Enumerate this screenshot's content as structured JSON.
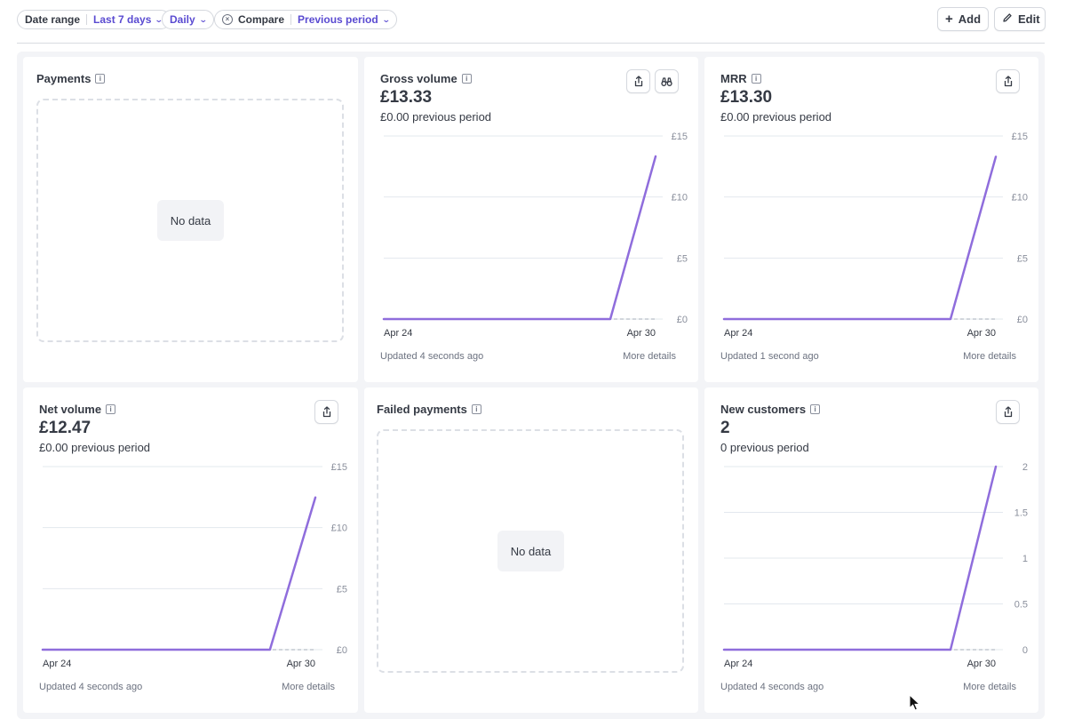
{
  "toolbar": {
    "date_range_label": "Date range",
    "date_range_value": "Last 7 days",
    "interval_value": "Daily",
    "compare_label": "Compare",
    "compare_value": "Previous period",
    "add_label": "Add",
    "edit_label": "Edit"
  },
  "colors": {
    "accent": "#5a4bd1",
    "series_line": "#8f6ddc",
    "grid_line": "#e3e8ee",
    "muted_text": "#6c7280"
  },
  "cards": {
    "payments": {
      "title": "Payments",
      "empty_text": "No data"
    },
    "failed_payments": {
      "title": "Failed payments",
      "empty_text": "No data"
    },
    "gross_volume": {
      "title": "Gross volume",
      "value": "£13.33",
      "previous": "£0.00 previous period",
      "updated": "Updated 4 seconds ago",
      "more": "More details"
    },
    "mrr": {
      "title": "MRR",
      "value": "£13.30",
      "previous": "£0.00 previous period",
      "updated": "Updated 1 second ago",
      "more": "More details"
    },
    "net_volume": {
      "title": "Net volume",
      "value": "£12.47",
      "previous": "£0.00 previous period",
      "updated": "Updated 4 seconds ago",
      "more": "More details"
    },
    "new_customers": {
      "title": "New customers",
      "value": "2",
      "previous": "0 previous period",
      "updated": "Updated 4 seconds ago",
      "more": "More details"
    }
  },
  "chart_data": [
    {
      "id": "gross_volume",
      "type": "line",
      "x": [
        "Apr 24",
        "Apr 25",
        "Apr 26",
        "Apr 27",
        "Apr 28",
        "Apr 29",
        "Apr 30"
      ],
      "x_tick_labels": [
        "Apr 24",
        "Apr 30"
      ],
      "series": [
        {
          "values": [
            0,
            0,
            0,
            0,
            0,
            0,
            13.33
          ]
        }
      ],
      "previous_series": [
        0,
        0,
        0,
        0,
        0,
        0,
        0
      ],
      "ylim": [
        0,
        15
      ],
      "y_ticks": [
        0,
        5,
        10,
        15
      ],
      "y_tick_labels": [
        "£0",
        "£5",
        "£10",
        "£15"
      ],
      "grid": true
    },
    {
      "id": "mrr",
      "type": "line",
      "x": [
        "Apr 24",
        "Apr 25",
        "Apr 26",
        "Apr 27",
        "Apr 28",
        "Apr 29",
        "Apr 30"
      ],
      "x_tick_labels": [
        "Apr 24",
        "Apr 30"
      ],
      "series": [
        {
          "values": [
            0,
            0,
            0,
            0,
            0,
            0,
            13.3
          ]
        }
      ],
      "previous_series": [
        0,
        0,
        0,
        0,
        0,
        0,
        0
      ],
      "ylim": [
        0,
        15
      ],
      "y_ticks": [
        0,
        5,
        10,
        15
      ],
      "y_tick_labels": [
        "£0",
        "£5",
        "£10",
        "£15"
      ],
      "grid": true
    },
    {
      "id": "net_volume",
      "type": "line",
      "x": [
        "Apr 24",
        "Apr 25",
        "Apr 26",
        "Apr 27",
        "Apr 28",
        "Apr 29",
        "Apr 30"
      ],
      "x_tick_labels": [
        "Apr 24",
        "Apr 30"
      ],
      "series": [
        {
          "values": [
            0,
            0,
            0,
            0,
            0,
            0,
            12.47
          ]
        }
      ],
      "previous_series": [
        0,
        0,
        0,
        0,
        0,
        0,
        0
      ],
      "ylim": [
        0,
        15
      ],
      "y_ticks": [
        0,
        5,
        10,
        15
      ],
      "y_tick_labels": [
        "£0",
        "£5",
        "£10",
        "£15"
      ],
      "grid": true
    },
    {
      "id": "new_customers",
      "type": "line",
      "x": [
        "Apr 24",
        "Apr 25",
        "Apr 26",
        "Apr 27",
        "Apr 28",
        "Apr 29",
        "Apr 30"
      ],
      "x_tick_labels": [
        "Apr 24",
        "Apr 30"
      ],
      "series": [
        {
          "values": [
            0,
            0,
            0,
            0,
            0,
            0,
            2
          ]
        }
      ],
      "previous_series": [
        0,
        0,
        0,
        0,
        0,
        0,
        0
      ],
      "ylim": [
        0,
        2
      ],
      "y_ticks": [
        0,
        0.5,
        1,
        1.5,
        2
      ],
      "y_tick_labels": [
        "0",
        "0.5",
        "1",
        "1.5",
        "2"
      ],
      "grid": true
    }
  ]
}
